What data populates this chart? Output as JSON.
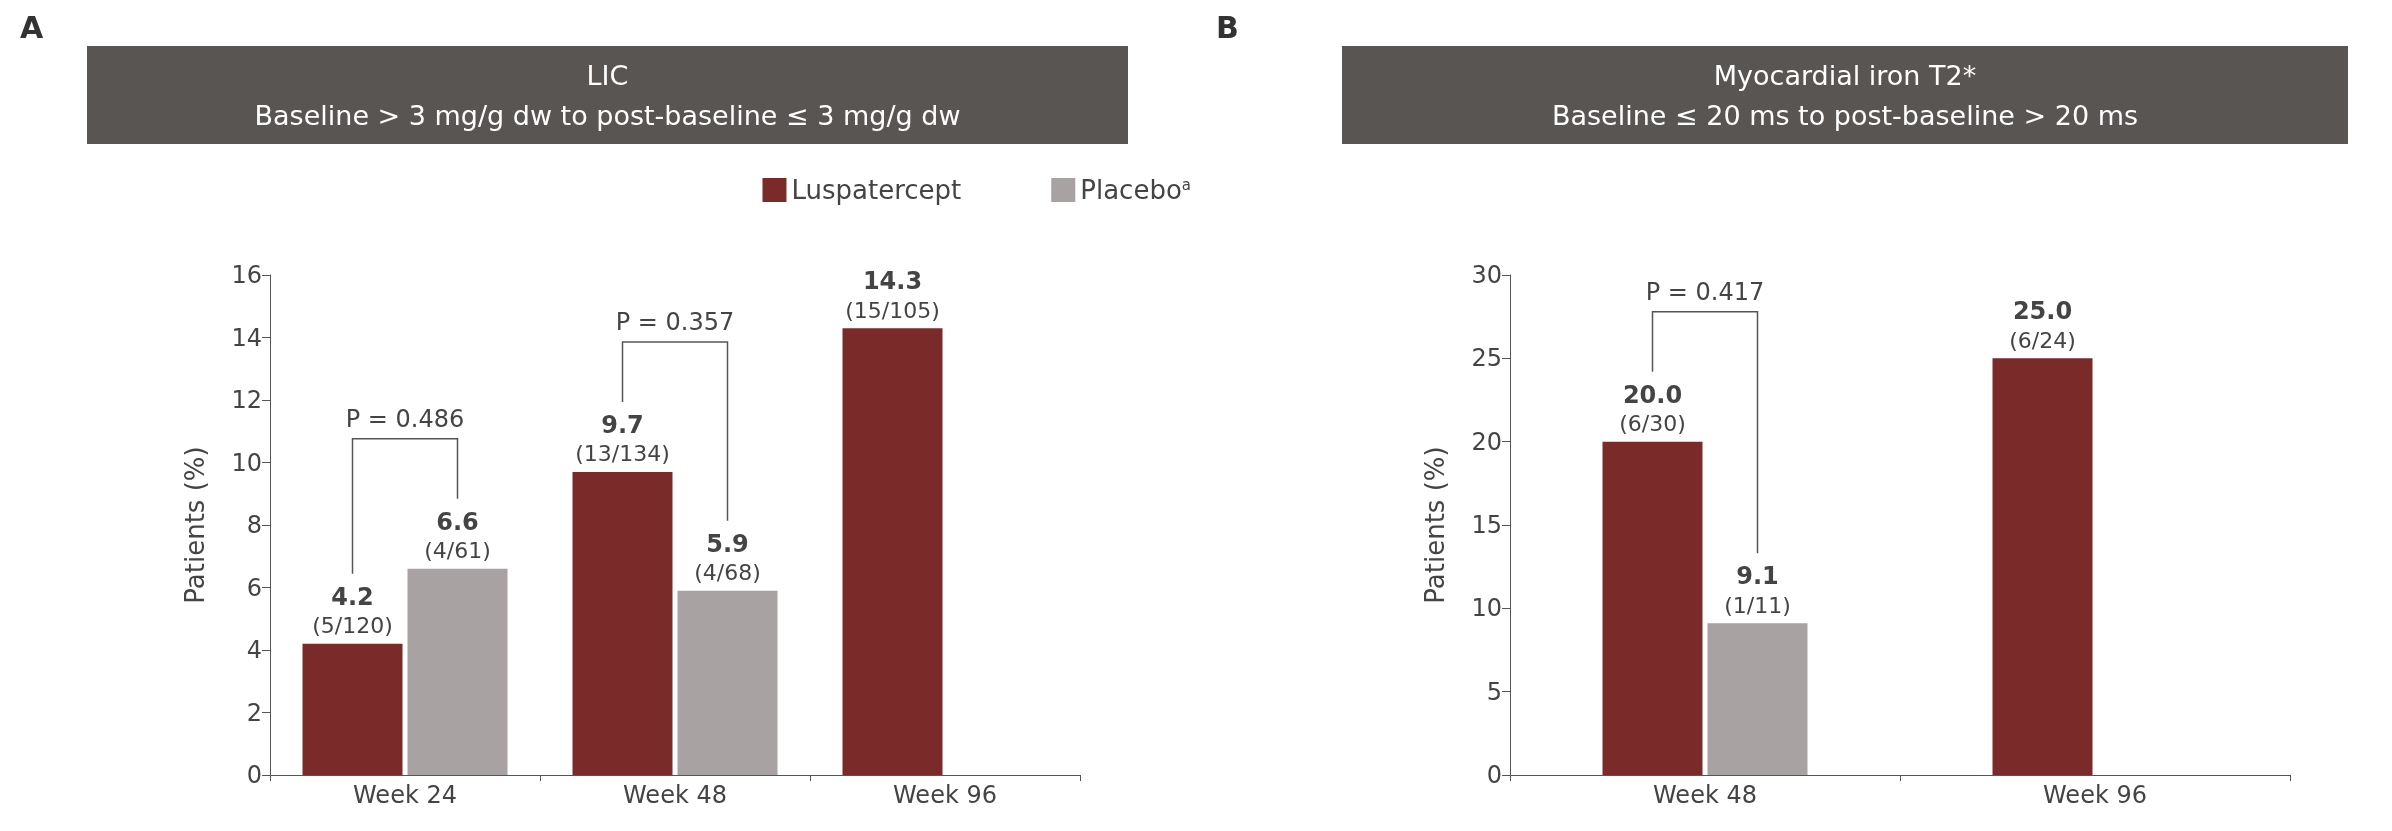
{
  "chart_data": [
    {
      "type": "bar",
      "title": "LIC\nBaseline > 3 mg/g dw to post-baseline ≤ 3 mg/g dw",
      "ylabel": "Patients (%)",
      "categories": [
        "Week 24",
        "Week 48",
        "Week 96"
      ],
      "series": [
        {
          "name": "Luspatercept",
          "color": "#7b2a2a",
          "values": [
            4.2,
            9.7,
            14.3
          ],
          "value_labels": [
            "4.2\n(5/120)",
            "9.7\n(13/134)",
            "14.3\n(15/105)"
          ]
        },
        {
          "name": "Placebo$^{a}$",
          "color": "#a8a2a2",
          "values": [
            6.6,
            5.9,
            null
          ],
          "value_labels": [
            "6.6\n(4/61)",
            "5.9\n(4/68)",
            null
          ]
        }
      ],
      "ylim": [
        0,
        16
      ],
      "yticks": [
        0,
        2,
        4,
        6,
        8,
        10,
        12,
        14,
        16
      ],
      "grid": false,
      "legend": "top right",
      "annotations": [
        "A",
        "P = 0.486",
        "P = 0.357"
      ]
    },
    {
      "type": "bar",
      "title": "Myocardial iron T2*\nBaseline ≤ 20 ms to post-baseline > 20 ms",
      "ylabel": "Patients (%)",
      "categories": [
        "Week 48",
        "Week 96"
      ],
      "series": [
        {
          "color": "#7b2a2a",
          "values": [
            20.0,
            25.0
          ],
          "value_labels": [
            "20.0\n(6/30)",
            "25.0\n(6/24)"
          ]
        },
        {
          "color": "#a8a2a2",
          "values": [
            9.1,
            null
          ],
          "value_labels": [
            "9.1\n(1/11)",
            null
          ]
        }
      ],
      "ylim": [
        0,
        30
      ],
      "yticks": [
        0,
        5,
        10,
        15,
        20,
        25,
        30
      ],
      "grid": false,
      "legend": false,
      "annotations": [
        "B",
        "P = 0.417"
      ]
    }
  ]
}
